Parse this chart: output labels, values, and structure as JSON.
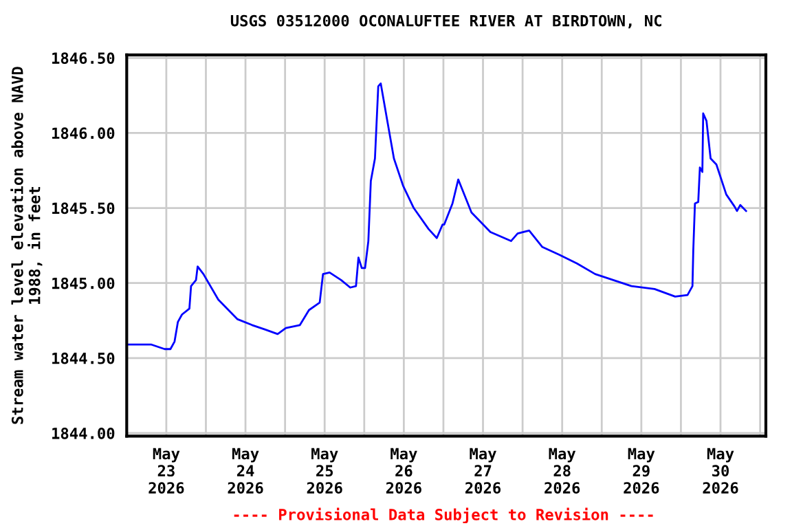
{
  "chart_data": {
    "type": "line",
    "title": "USGS 03512000 OCONALUFTEE RIVER AT BIRDTOWN, NC",
    "ylabel": "Stream water level elevation above NAVD\n1988, in feet",
    "annotations": [
      "---- Provisional Data Subject to Revision ----"
    ],
    "x": [
      "2026-05-23T00:00",
      "2026-05-23T07:30",
      "2026-05-23T11:30",
      "2026-05-23T13:15",
      "2026-05-23T14:30",
      "2026-05-23T15:30",
      "2026-05-23T16:45",
      "2026-05-23T19:00",
      "2026-05-23T19:30",
      "2026-05-23T21:00",
      "2026-05-23T21:30",
      "2026-05-23T23:15",
      "2026-05-24T03:45",
      "2026-05-24T09:30",
      "2026-05-24T14:00",
      "2026-05-24T18:00",
      "2026-05-24T21:45",
      "2026-05-25T00:15",
      "2026-05-25T04:30",
      "2026-05-25T07:15",
      "2026-05-25T10:30",
      "2026-05-25T11:30",
      "2026-05-25T13:30",
      "2026-05-25T17:00",
      "2026-05-25T19:45",
      "2026-05-25T21:30",
      "2026-05-25T22:15",
      "2026-05-25T23:15",
      "2026-05-26T00:15",
      "2026-05-26T01:15",
      "2026-05-26T02:00",
      "2026-05-26T03:15",
      "2026-05-26T04:15",
      "2026-05-26T05:00",
      "2026-05-26T07:00",
      "2026-05-26T09:00",
      "2026-05-26T11:45",
      "2026-05-26T15:00",
      "2026-05-26T19:30",
      "2026-05-26T22:00",
      "2026-05-26T23:45",
      "2026-05-27T00:15",
      "2026-05-27T02:45",
      "2026-05-27T04:30",
      "2026-05-27T08:30",
      "2026-05-27T14:15",
      "2026-05-27T20:30",
      "2026-05-27T22:30",
      "2026-05-28T02:00",
      "2026-05-28T06:00",
      "2026-05-28T11:00",
      "2026-05-28T16:30",
      "2026-05-28T22:00",
      "2026-05-29T03:30",
      "2026-05-29T09:00",
      "2026-05-29T16:00",
      "2026-05-29T22:15",
      "2026-05-30T02:00",
      "2026-05-30T03:30",
      "2026-05-30T03:45",
      "2026-05-30T04:15",
      "2026-05-30T05:15",
      "2026-05-30T05:45",
      "2026-05-30T06:30",
      "2026-05-30T06:45",
      "2026-05-30T07:45",
      "2026-05-30T09:00",
      "2026-05-30T10:45",
      "2026-05-30T13:45",
      "2026-05-30T16:15",
      "2026-05-30T17:00",
      "2026-05-30T18:00",
      "2026-05-30T19:45"
    ],
    "series": [
      {
        "color": "#0000ff",
        "values": [
          1844.59,
          1844.59,
          1844.56,
          1844.56,
          1844.61,
          1844.74,
          1844.79,
          1844.83,
          1844.98,
          1845.02,
          1845.11,
          1845.06,
          1844.89,
          1844.76,
          1844.72,
          1844.69,
          1844.66,
          1844.7,
          1844.72,
          1844.82,
          1844.87,
          1845.06,
          1845.07,
          1845.02,
          1844.97,
          1844.98,
          1845.17,
          1845.1,
          1845.1,
          1845.28,
          1845.68,
          1845.83,
          1846.31,
          1846.33,
          1846.08,
          1845.83,
          1845.65,
          1845.5,
          1845.36,
          1845.3,
          1845.39,
          1845.39,
          1845.53,
          1845.69,
          1845.47,
          1845.34,
          1845.28,
          1845.33,
          1845.35,
          1845.24,
          1845.19,
          1845.13,
          1845.06,
          1845.02,
          1844.98,
          1844.96,
          1844.91,
          1844.92,
          1844.98,
          1845.22,
          1845.53,
          1845.54,
          1845.77,
          1845.74,
          1846.13,
          1846.08,
          1845.83,
          1845.79,
          1845.59,
          1845.51,
          1845.48,
          1845.52,
          1845.48
        ]
      }
    ],
    "xlim": [
      "2026-05-23T00:00",
      "2026-05-31T01:45"
    ],
    "xticks": [
      {
        "value": "2026-05-23T12:00",
        "label": "May\n23\n2026"
      },
      {
        "value": "2026-05-24T00:00",
        "label": null
      },
      {
        "value": "2026-05-24T12:00",
        "label": "May\n24\n2026"
      },
      {
        "value": "2026-05-25T00:00",
        "label": null
      },
      {
        "value": "2026-05-25T12:00",
        "label": "May\n25\n2026"
      },
      {
        "value": "2026-05-26T00:00",
        "label": null
      },
      {
        "value": "2026-05-26T12:00",
        "label": "May\n26\n2026"
      },
      {
        "value": "2026-05-27T00:00",
        "label": null
      },
      {
        "value": "2026-05-27T12:00",
        "label": "May\n27\n2026"
      },
      {
        "value": "2026-05-28T00:00",
        "label": null
      },
      {
        "value": "2026-05-28T12:00",
        "label": "May\n28\n2026"
      },
      {
        "value": "2026-05-29T00:00",
        "label": null
      },
      {
        "value": "2026-05-29T12:00",
        "label": "May\n29\n2026"
      },
      {
        "value": "2026-05-30T00:00",
        "label": null
      },
      {
        "value": "2026-05-30T12:00",
        "label": "May\n30\n2026"
      },
      {
        "value": "2026-05-31T00:00",
        "label": null
      }
    ],
    "ylim": [
      1843.98,
      1846.52
    ],
    "yticks": [
      {
        "value": 1844.0,
        "label": "1844.00"
      },
      {
        "value": 1844.5,
        "label": "1844.50"
      },
      {
        "value": 1845.0,
        "label": "1845.00"
      },
      {
        "value": 1845.5,
        "label": "1845.50"
      },
      {
        "value": 1846.0,
        "label": "1846.00"
      },
      {
        "value": 1846.5,
        "label": "1846.50"
      }
    ],
    "grid": true,
    "legend": false,
    "marker": "none",
    "line_style": "solid"
  }
}
